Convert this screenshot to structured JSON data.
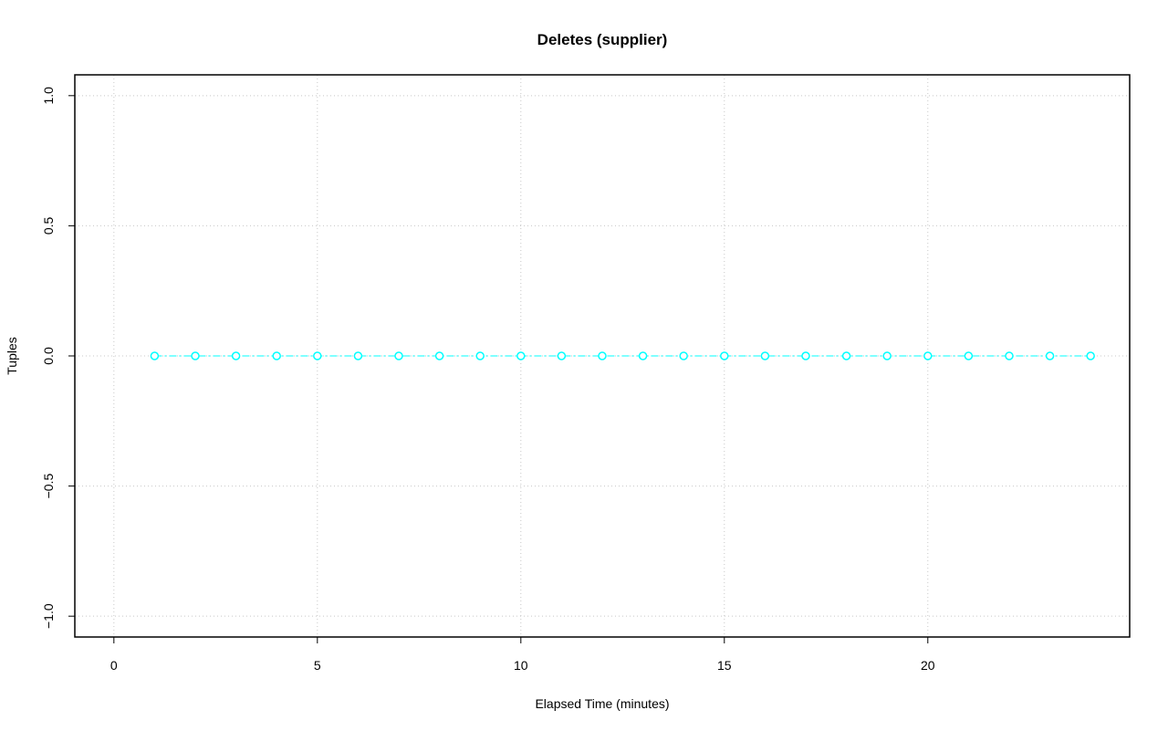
{
  "chart_data": {
    "type": "line",
    "title": "Deletes (supplier)",
    "xlabel": "Elapsed Time (minutes)",
    "ylabel": "Tuples",
    "x": [
      1,
      2,
      3,
      4,
      5,
      6,
      7,
      8,
      9,
      10,
      11,
      12,
      13,
      14,
      15,
      16,
      17,
      18,
      19,
      20,
      21,
      22,
      23,
      24
    ],
    "series": [
      {
        "color": "#00ffff",
        "values": [
          0,
          0,
          0,
          0,
          0,
          0,
          0,
          0,
          0,
          0,
          0,
          0,
          0,
          0,
          0,
          0,
          0,
          0,
          0,
          0,
          0,
          0,
          0,
          0
        ]
      }
    ],
    "xlim": [
      -0.96,
      24.96
    ],
    "xticks": [
      0,
      5,
      10,
      15,
      20
    ],
    "ylim": [
      -1.08,
      1.08
    ],
    "yticks": [
      {
        "value": -1,
        "label": "−1.0"
      },
      {
        "value": -0.5,
        "label": "−0.5"
      },
      {
        "value": 0,
        "label": "0.0"
      },
      {
        "value": 0.5,
        "label": "0.5"
      },
      {
        "value": 1,
        "label": "1.0"
      }
    ],
    "grid": true
  }
}
